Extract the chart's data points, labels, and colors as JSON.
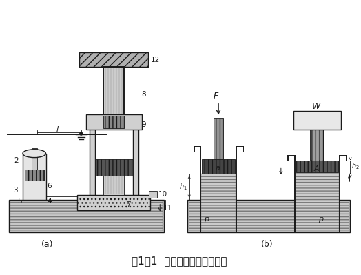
{
  "title": "图1－1  液压千斤顶工作原理图",
  "label_a": "(a)",
  "label_b": "(b)",
  "bg_color": "#ffffff",
  "lc": "#1a1a1a",
  "font_size_title": 11,
  "font_size_label": 9,
  "font_size_num": 7.5
}
